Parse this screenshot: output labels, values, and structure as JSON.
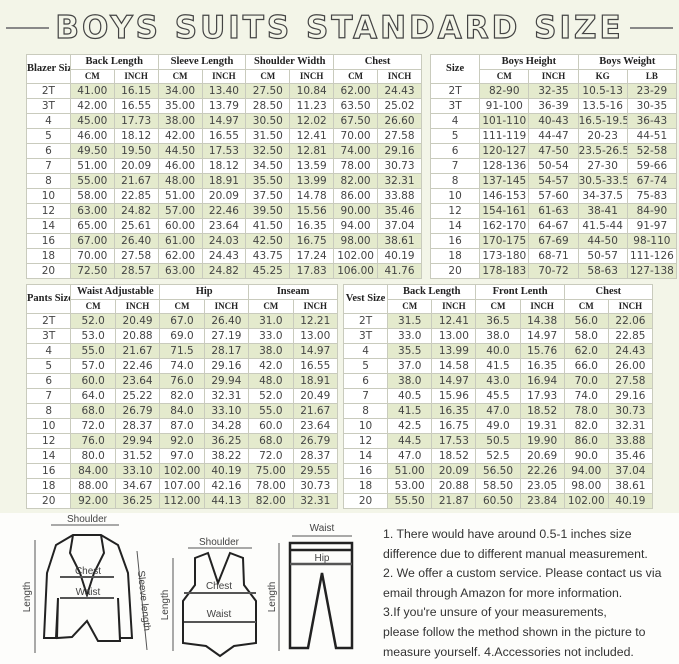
{
  "title": "BOYS SUITS STANDARD SIZE",
  "colors": {
    "stripe": "#e4eacd",
    "background": "#f3f5e8"
  },
  "blazer": {
    "size_label": "Blazer Size",
    "groups": [
      "Back Length",
      "Sleeve Length",
      "Shoulder Width",
      "Chest"
    ],
    "units": [
      "CM",
      "INCH"
    ],
    "rows": [
      [
        "2T",
        "41.00",
        "16.15",
        "34.00",
        "13.40",
        "27.50",
        "10.84",
        "62.00",
        "24.43"
      ],
      [
        "3T",
        "42.00",
        "16.55",
        "35.00",
        "13.79",
        "28.50",
        "11.23",
        "63.50",
        "25.02"
      ],
      [
        "4",
        "45.00",
        "17.73",
        "38.00",
        "14.97",
        "30.50",
        "12.02",
        "67.50",
        "26.60"
      ],
      [
        "5",
        "46.00",
        "18.12",
        "42.00",
        "16.55",
        "31.50",
        "12.41",
        "70.00",
        "27.58"
      ],
      [
        "6",
        "49.50",
        "19.50",
        "44.50",
        "17.53",
        "32.50",
        "12.81",
        "74.00",
        "29.16"
      ],
      [
        "7",
        "51.00",
        "20.09",
        "46.00",
        "18.12",
        "34.50",
        "13.59",
        "78.00",
        "30.73"
      ],
      [
        "8",
        "55.00",
        "21.67",
        "48.00",
        "18.91",
        "35.50",
        "13.99",
        "82.00",
        "32.31"
      ],
      [
        "10",
        "58.00",
        "22.85",
        "51.00",
        "20.09",
        "37.50",
        "14.78",
        "86.00",
        "33.88"
      ],
      [
        "12",
        "63.00",
        "24.82",
        "57.00",
        "22.46",
        "39.50",
        "15.56",
        "90.00",
        "35.46"
      ],
      [
        "14",
        "65.00",
        "25.61",
        "60.00",
        "23.64",
        "41.50",
        "16.35",
        "94.00",
        "37.04"
      ],
      [
        "16",
        "67.00",
        "26.40",
        "61.00",
        "24.03",
        "42.50",
        "16.75",
        "98.00",
        "38.61"
      ],
      [
        "18",
        "70.00",
        "27.58",
        "62.00",
        "24.43",
        "43.75",
        "17.24",
        "102.00",
        "40.19"
      ],
      [
        "20",
        "72.50",
        "28.57",
        "63.00",
        "24.82",
        "45.25",
        "17.83",
        "106.00",
        "41.76"
      ]
    ]
  },
  "sizes": {
    "size_label": "Size",
    "groups": [
      "Boys Height",
      "Boys Weight"
    ],
    "units": [
      [
        "CM",
        "INCH"
      ],
      [
        "KG",
        "LB"
      ]
    ],
    "rows": [
      [
        "2T",
        "82-90",
        "32-35",
        "10.5-13",
        "23-29"
      ],
      [
        "3T",
        "91-100",
        "36-39",
        "13.5-16",
        "30-35"
      ],
      [
        "4",
        "101-110",
        "40-43",
        "16.5-19.5",
        "36-43"
      ],
      [
        "5",
        "111-119",
        "44-47",
        "20-23",
        "44-51"
      ],
      [
        "6",
        "120-127",
        "47-50",
        "23.5-26.5",
        "52-58"
      ],
      [
        "7",
        "128-136",
        "50-54",
        "27-30",
        "59-66"
      ],
      [
        "8",
        "137-145",
        "54-57",
        "30.5-33.5",
        "67-74"
      ],
      [
        "10",
        "146-153",
        "57-60",
        "34-37.5",
        "75-83"
      ],
      [
        "12",
        "154-161",
        "61-63",
        "38-41",
        "84-90"
      ],
      [
        "14",
        "162-170",
        "64-67",
        "41.5-44",
        "91-97"
      ],
      [
        "16",
        "170-175",
        "67-69",
        "44-50",
        "98-110"
      ],
      [
        "18",
        "173-180",
        "68-71",
        "50-57",
        "111-126"
      ],
      [
        "20",
        "178-183",
        "70-72",
        "58-63",
        "127-138"
      ]
    ]
  },
  "pants": {
    "size_label": "Pants Size",
    "groups": [
      "Waist Adjustable",
      "Hip",
      "Inseam"
    ],
    "units": [
      "CM",
      "INCH"
    ],
    "rows": [
      [
        "2T",
        "52.0",
        "20.49",
        "67.0",
        "26.40",
        "31.0",
        "12.21"
      ],
      [
        "3T",
        "53.0",
        "20.88",
        "69.0",
        "27.19",
        "33.0",
        "13.00"
      ],
      [
        "4",
        "55.0",
        "21.67",
        "71.5",
        "28.17",
        "38.0",
        "14.97"
      ],
      [
        "5",
        "57.0",
        "22.46",
        "74.0",
        "29.16",
        "42.0",
        "16.55"
      ],
      [
        "6",
        "60.0",
        "23.64",
        "76.0",
        "29.94",
        "48.0",
        "18.91"
      ],
      [
        "7",
        "64.0",
        "25.22",
        "82.0",
        "32.31",
        "52.0",
        "20.49"
      ],
      [
        "8",
        "68.0",
        "26.79",
        "84.0",
        "33.10",
        "55.0",
        "21.67"
      ],
      [
        "10",
        "72.0",
        "28.37",
        "87.0",
        "34.28",
        "60.0",
        "23.64"
      ],
      [
        "12",
        "76.0",
        "29.94",
        "92.0",
        "36.25",
        "68.0",
        "26.79"
      ],
      [
        "14",
        "80.0",
        "31.52",
        "97.0",
        "38.22",
        "72.0",
        "28.37"
      ],
      [
        "16",
        "84.00",
        "33.10",
        "102.00",
        "40.19",
        "75.00",
        "29.55"
      ],
      [
        "18",
        "88.00",
        "34.67",
        "107.00",
        "42.16",
        "78.00",
        "30.73"
      ],
      [
        "20",
        "92.00",
        "36.25",
        "112.00",
        "44.13",
        "82.00",
        "32.31"
      ]
    ]
  },
  "vest": {
    "size_label": "Vest Size",
    "groups": [
      "Back Length",
      "Front Lenth",
      "Chest"
    ],
    "units": [
      "CM",
      "INCH"
    ],
    "rows": [
      [
        "2T",
        "31.5",
        "12.41",
        "36.5",
        "14.38",
        "56.0",
        "22.06"
      ],
      [
        "3T",
        "33.0",
        "13.00",
        "38.0",
        "14.97",
        "58.0",
        "22.85"
      ],
      [
        "4",
        "35.5",
        "13.99",
        "40.0",
        "15.76",
        "62.0",
        "24.43"
      ],
      [
        "5",
        "37.0",
        "14.58",
        "41.5",
        "16.35",
        "66.0",
        "26.00"
      ],
      [
        "6",
        "38.0",
        "14.97",
        "43.0",
        "16.94",
        "70.0",
        "27.58"
      ],
      [
        "7",
        "40.5",
        "15.96",
        "45.5",
        "17.93",
        "74.0",
        "29.16"
      ],
      [
        "8",
        "41.5",
        "16.35",
        "47.0",
        "18.52",
        "78.0",
        "30.73"
      ],
      [
        "10",
        "42.5",
        "16.75",
        "49.0",
        "19.31",
        "82.0",
        "32.31"
      ],
      [
        "12",
        "44.5",
        "17.53",
        "50.5",
        "19.90",
        "86.0",
        "33.88"
      ],
      [
        "14",
        "47.0",
        "18.52",
        "52.5",
        "20.69",
        "90.0",
        "35.46"
      ],
      [
        "16",
        "51.00",
        "20.09",
        "56.50",
        "22.26",
        "94.00",
        "37.04"
      ],
      [
        "18",
        "53.00",
        "20.88",
        "58.50",
        "23.05",
        "98.00",
        "38.61"
      ],
      [
        "20",
        "55.50",
        "21.87",
        "60.50",
        "23.84",
        "102.00",
        "40.19"
      ]
    ]
  },
  "diagram": {
    "blazer": {
      "shoulder": "Shoulder",
      "chest": "Chest",
      "waist": "Waist",
      "length": "Length",
      "sleeve": "Sleeve length"
    },
    "vest": {
      "shoulder": "Shoulder",
      "chest": "Chest",
      "waist": "Waist",
      "length": "Length"
    },
    "pants": {
      "waist": "Waist",
      "hip": "Hip",
      "length": "Length"
    }
  },
  "notes": [
    "1. There would have around 0.5-1 inches size",
    "difference due to different manual measurement.",
    "2. We offer a custom service. Please contact us via",
    "email through Amazon for more information.",
    "3.If you're unsure of your measurements,",
    "please follow the method shown in the picture to",
    "measure yourself. 4.Accessories not included."
  ]
}
